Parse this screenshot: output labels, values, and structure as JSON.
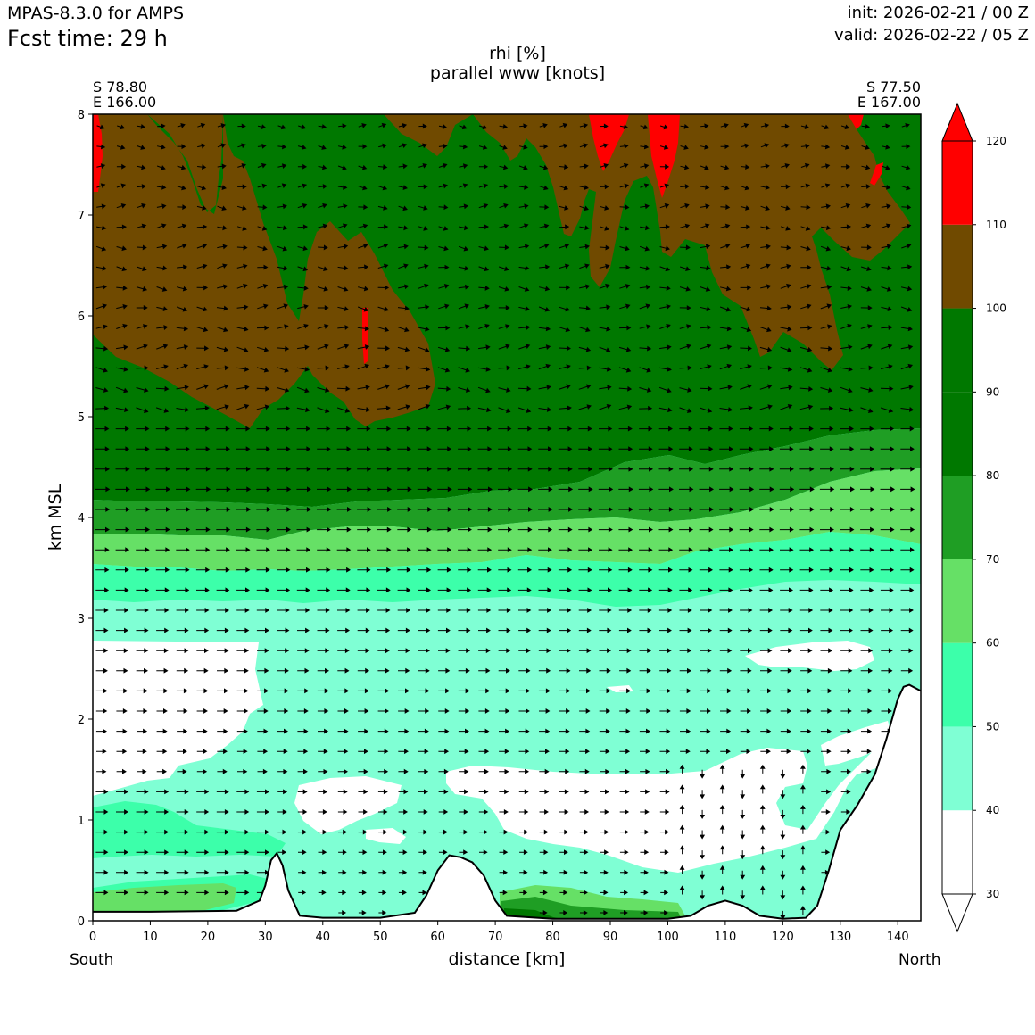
{
  "header": {
    "model": "MPAS-8.3.0 for AMPS",
    "fcst": "Fcst time:   29 h",
    "init": "init: 2026-02-21 / 00 Z",
    "valid": "valid: 2026-02-22 / 05 Z"
  },
  "endpoints": {
    "left_lat": "S 78.80",
    "left_lon": "E 166.00",
    "right_lat": "S 77.50",
    "right_lon": "E 167.00",
    "left_dir": "South",
    "right_dir": "North"
  },
  "chart_data": {
    "type": "cross-section",
    "title": "rhi [%]",
    "subtitle": "parallel www [knots]",
    "xlabel": "distance [km]",
    "ylabel": "km MSL",
    "xlim": [
      0,
      144
    ],
    "ylim": [
      0,
      8
    ],
    "xticks": [
      0,
      10,
      20,
      30,
      40,
      50,
      60,
      70,
      80,
      90,
      100,
      110,
      120,
      130,
      140
    ],
    "yticks": [
      0,
      1,
      2,
      3,
      4,
      5,
      6,
      7,
      8
    ],
    "colorbar": {
      "levels": [
        30,
        40,
        50,
        60,
        70,
        80,
        90,
        100,
        110,
        120
      ],
      "colors": [
        "#ffffff",
        "#7fffd4",
        "#3cffaa",
        "#66e066",
        "#1f9e24",
        "#007800",
        "#007800",
        "#704a00",
        "#ff0000"
      ],
      "extend": "both"
    },
    "terrain": [
      [
        0,
        0.09
      ],
      [
        10,
        0.09
      ],
      [
        25,
        0.1
      ],
      [
        29,
        0.2
      ],
      [
        30,
        0.35
      ],
      [
        31,
        0.6
      ],
      [
        32,
        0.67
      ],
      [
        33,
        0.55
      ],
      [
        34,
        0.3
      ],
      [
        36,
        0.05
      ],
      [
        40,
        0.03
      ],
      [
        50,
        0.03
      ],
      [
        56,
        0.08
      ],
      [
        58,
        0.25
      ],
      [
        60,
        0.5
      ],
      [
        62,
        0.65
      ],
      [
        64,
        0.63
      ],
      [
        66,
        0.58
      ],
      [
        68,
        0.45
      ],
      [
        70,
        0.2
      ],
      [
        72,
        0.05
      ],
      [
        80,
        0.02
      ],
      [
        100,
        0.02
      ],
      [
        104,
        0.05
      ],
      [
        107,
        0.15
      ],
      [
        110,
        0.2
      ],
      [
        113,
        0.15
      ],
      [
        116,
        0.05
      ],
      [
        120,
        0.02
      ],
      [
        124,
        0.03
      ],
      [
        126,
        0.15
      ],
      [
        128,
        0.5
      ],
      [
        130,
        0.9
      ],
      [
        133,
        1.15
      ],
      [
        136,
        1.45
      ],
      [
        138,
        1.8
      ],
      [
        140,
        2.2
      ],
      [
        141,
        2.32
      ],
      [
        142,
        2.34
      ],
      [
        144,
        2.28
      ]
    ]
  }
}
